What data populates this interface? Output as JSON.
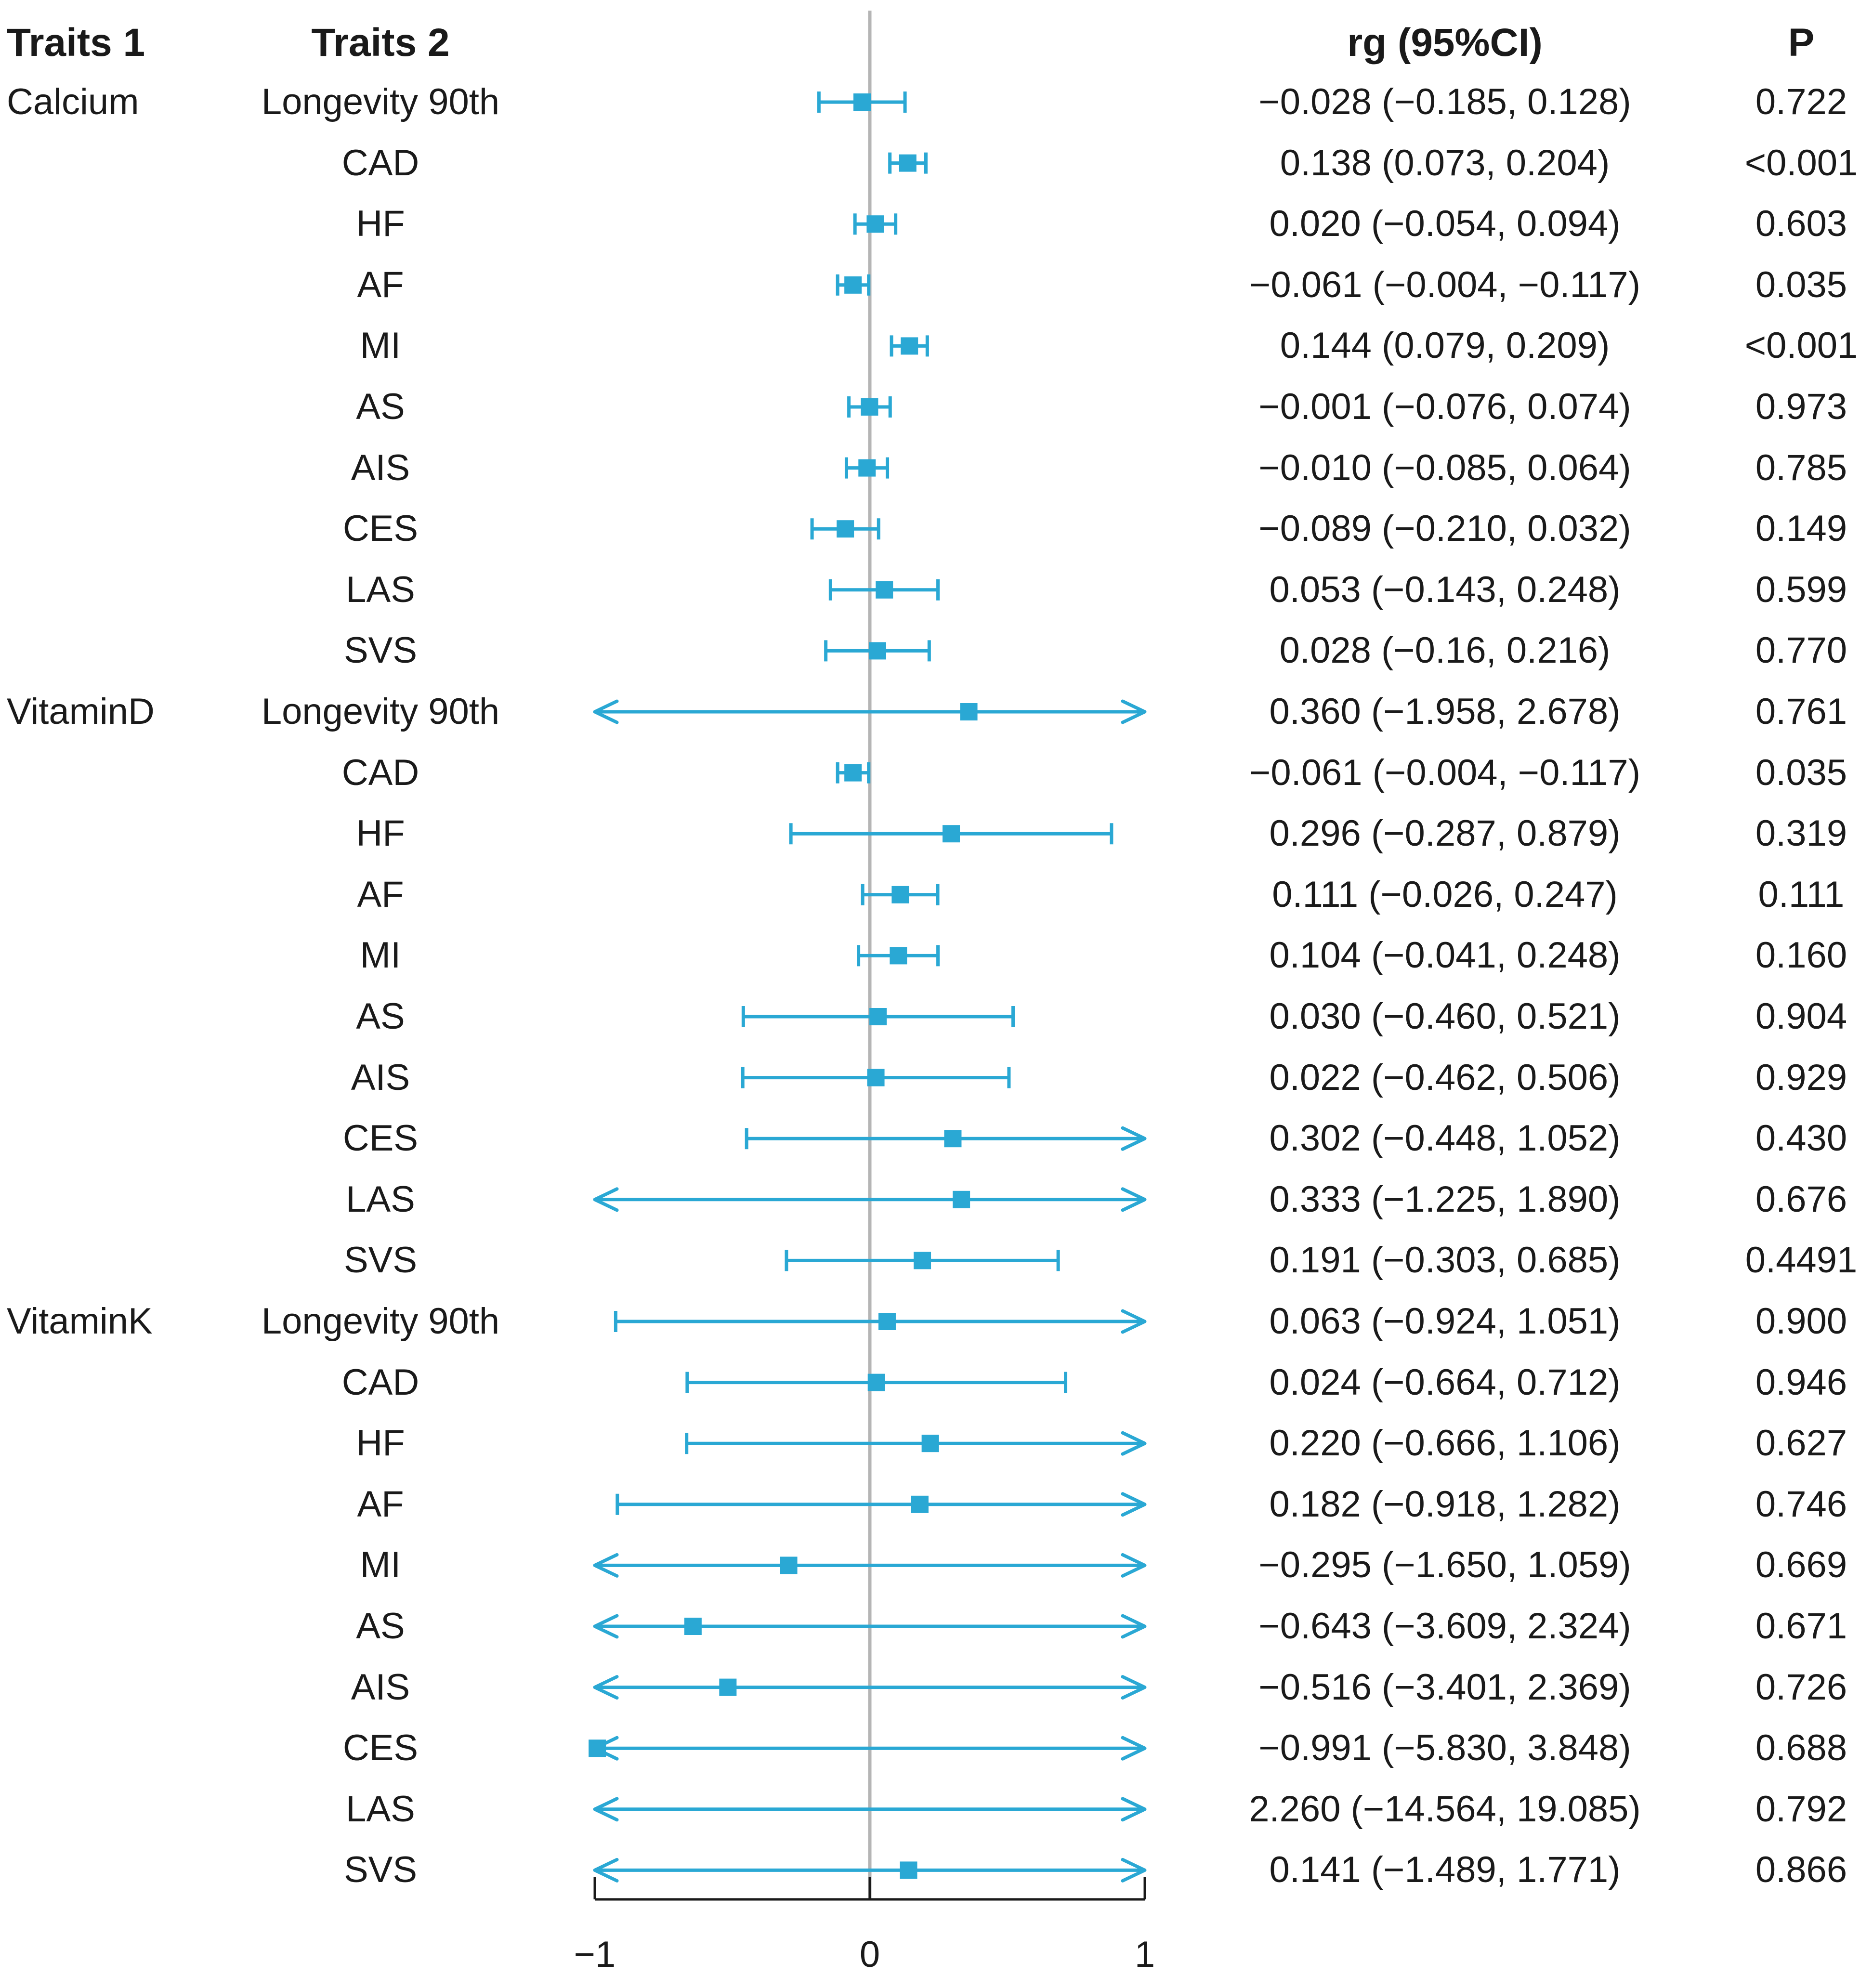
{
  "chart_data": {
    "type": "forest",
    "headers": {
      "traits1": "Traits 1",
      "traits2": "Traits 2",
      "rg": "rg (95%CI)",
      "p": "P"
    },
    "xlim": [
      -1,
      1
    ],
    "ticks": [
      {
        "value": -1,
        "label": "−1"
      },
      {
        "value": 0,
        "label": "0"
      },
      {
        "value": 1,
        "label": "1"
      }
    ],
    "colors": {
      "marker": "#2aa8d4",
      "zero_line": "#b5b5b5",
      "axis": "#1a1a1a",
      "text": "#1a1a1a"
    },
    "rows": [
      {
        "trait1": "Calcium",
        "trait2": "Longevity 90th",
        "rg": -0.028,
        "lo": -0.185,
        "hi": 0.128,
        "rg_text": "−0.028 (−0.185, 0.128)",
        "p": "0.722"
      },
      {
        "trait1": "",
        "trait2": "CAD",
        "rg": 0.138,
        "lo": 0.073,
        "hi": 0.204,
        "rg_text": "0.138 (0.073, 0.204)",
        "p": "<0.001"
      },
      {
        "trait1": "",
        "trait2": "HF",
        "rg": 0.02,
        "lo": -0.054,
        "hi": 0.094,
        "rg_text": "0.020 (−0.054, 0.094)",
        "p": "0.603"
      },
      {
        "trait1": "",
        "trait2": "AF",
        "rg": -0.061,
        "lo": -0.117,
        "hi": -0.004,
        "rg_text": "−0.061 (−0.004, −0.117)",
        "p": "0.035"
      },
      {
        "trait1": "",
        "trait2": "MI",
        "rg": 0.144,
        "lo": 0.079,
        "hi": 0.209,
        "rg_text": "0.144 (0.079, 0.209)",
        "p": "<0.001"
      },
      {
        "trait1": "",
        "trait2": "AS",
        "rg": -0.001,
        "lo": -0.076,
        "hi": 0.074,
        "rg_text": "−0.001 (−0.076, 0.074)",
        "p": "0.973"
      },
      {
        "trait1": "",
        "trait2": "AIS",
        "rg": -0.01,
        "lo": -0.085,
        "hi": 0.064,
        "rg_text": "−0.010 (−0.085, 0.064)",
        "p": "0.785"
      },
      {
        "trait1": "",
        "trait2": "CES",
        "rg": -0.089,
        "lo": -0.21,
        "hi": 0.032,
        "rg_text": "−0.089 (−0.210, 0.032)",
        "p": "0.149"
      },
      {
        "trait1": "",
        "trait2": "LAS",
        "rg": 0.053,
        "lo": -0.143,
        "hi": 0.248,
        "rg_text": "0.053 (−0.143, 0.248)",
        "p": "0.599"
      },
      {
        "trait1": "",
        "trait2": "SVS",
        "rg": 0.028,
        "lo": -0.16,
        "hi": 0.216,
        "rg_text": "0.028 (−0.16, 0.216)",
        "p": "0.770"
      },
      {
        "trait1": "VitaminD",
        "trait2": "Longevity 90th",
        "rg": 0.36,
        "lo": -1.958,
        "hi": 2.678,
        "rg_text": "0.360 (−1.958, 2.678)",
        "p": "0.761"
      },
      {
        "trait1": "",
        "trait2": "CAD",
        "rg": -0.061,
        "lo": -0.117,
        "hi": -0.004,
        "rg_text": "−0.061 (−0.004, −0.117)",
        "p": "0.035"
      },
      {
        "trait1": "",
        "trait2": "HF",
        "rg": 0.296,
        "lo": -0.287,
        "hi": 0.879,
        "rg_text": "0.296 (−0.287, 0.879)",
        "p": "0.319"
      },
      {
        "trait1": "",
        "trait2": "AF",
        "rg": 0.111,
        "lo": -0.026,
        "hi": 0.247,
        "rg_text": "0.111 (−0.026, 0.247)",
        "p": "0.111"
      },
      {
        "trait1": "",
        "trait2": "MI",
        "rg": 0.104,
        "lo": -0.041,
        "hi": 0.248,
        "rg_text": "0.104 (−0.041, 0.248)",
        "p": "0.160"
      },
      {
        "trait1": "",
        "trait2": "AS",
        "rg": 0.03,
        "lo": -0.46,
        "hi": 0.521,
        "rg_text": "0.030 (−0.460, 0.521)",
        "p": "0.904"
      },
      {
        "trait1": "",
        "trait2": "AIS",
        "rg": 0.022,
        "lo": -0.462,
        "hi": 0.506,
        "rg_text": "0.022 (−0.462, 0.506)",
        "p": "0.929"
      },
      {
        "trait1": "",
        "trait2": "CES",
        "rg": 0.302,
        "lo": -0.448,
        "hi": 1.052,
        "rg_text": "0.302 (−0.448, 1.052)",
        "p": "0.430"
      },
      {
        "trait1": "",
        "trait2": "LAS",
        "rg": 0.333,
        "lo": -1.225,
        "hi": 1.89,
        "rg_text": "0.333 (−1.225, 1.890)",
        "p": "0.676"
      },
      {
        "trait1": "",
        "trait2": "SVS",
        "rg": 0.191,
        "lo": -0.303,
        "hi": 0.685,
        "rg_text": "0.191 (−0.303, 0.685)",
        "p": "0.4491"
      },
      {
        "trait1": "VitaminK",
        "trait2": "Longevity 90th",
        "rg": 0.063,
        "lo": -0.924,
        "hi": 1.051,
        "rg_text": "0.063 (−0.924, 1.051)",
        "p": "0.900"
      },
      {
        "trait1": "",
        "trait2": "CAD",
        "rg": 0.024,
        "lo": -0.664,
        "hi": 0.712,
        "rg_text": "0.024 (−0.664, 0.712)",
        "p": "0.946"
      },
      {
        "trait1": "",
        "trait2": "HF",
        "rg": 0.22,
        "lo": -0.666,
        "hi": 1.106,
        "rg_text": "0.220 (−0.666, 1.106)",
        "p": "0.627"
      },
      {
        "trait1": "",
        "trait2": "AF",
        "rg": 0.182,
        "lo": -0.918,
        "hi": 1.282,
        "rg_text": "0.182 (−0.918, 1.282)",
        "p": "0.746"
      },
      {
        "trait1": "",
        "trait2": "MI",
        "rg": -0.295,
        "lo": -1.65,
        "hi": 1.059,
        "rg_text": "−0.295 (−1.650, 1.059)",
        "p": "0.669"
      },
      {
        "trait1": "",
        "trait2": "AS",
        "rg": -0.643,
        "lo": -3.609,
        "hi": 2.324,
        "rg_text": "−0.643 (−3.609, 2.324)",
        "p": "0.671"
      },
      {
        "trait1": "",
        "trait2": "AIS",
        "rg": -0.516,
        "lo": -3.401,
        "hi": 2.369,
        "rg_text": "−0.516 (−3.401, 2.369)",
        "p": "0.726"
      },
      {
        "trait1": "",
        "trait2": "CES",
        "rg": -0.991,
        "lo": -5.83,
        "hi": 3.848,
        "rg_text": "−0.991 (−5.830, 3.848)",
        "p": "0.688"
      },
      {
        "trait1": "",
        "trait2": "LAS",
        "rg": 2.26,
        "lo": -14.564,
        "hi": 19.085,
        "rg_text": "2.260 (−14.564, 19.085)",
        "p": "0.792"
      },
      {
        "trait1": "",
        "trait2": "SVS",
        "rg": 0.141,
        "lo": -1.489,
        "hi": 1.771,
        "rg_text": "0.141 (−1.489, 1.771)",
        "p": "0.866"
      }
    ]
  }
}
